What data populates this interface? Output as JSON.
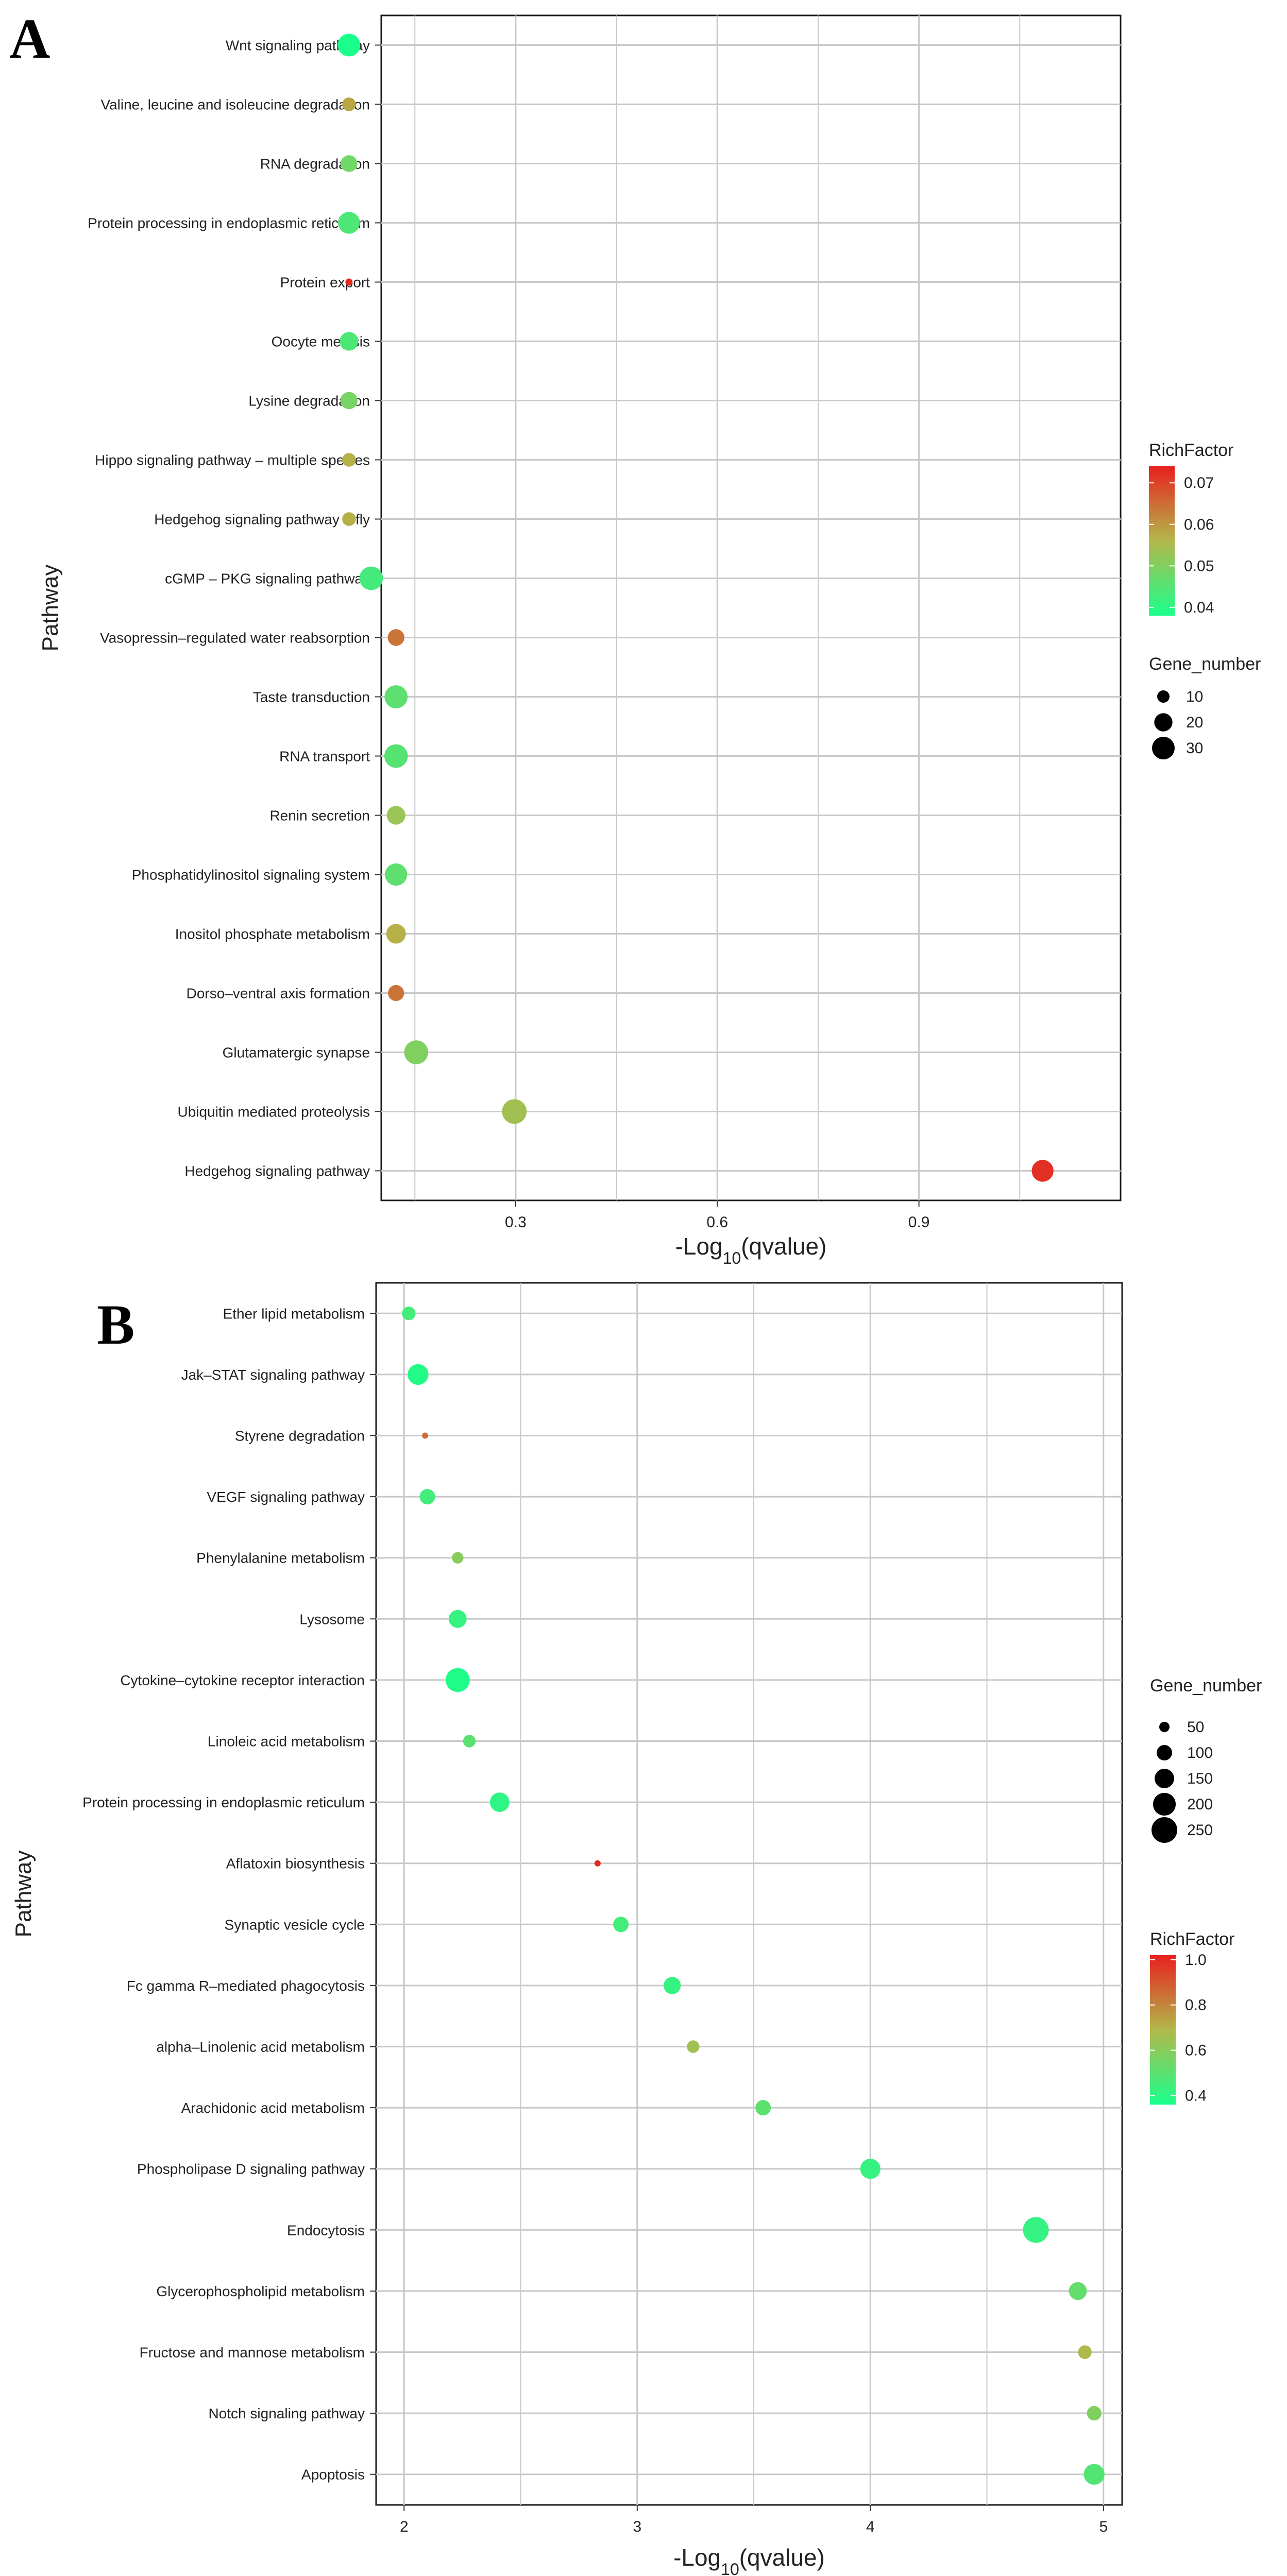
{
  "chart_data": [
    {
      "panel_label": "A",
      "type": "scatter",
      "title": "",
      "xlabel": "-Log10(qvalue)",
      "xlabel_main": "-Log",
      "xlabel_sub": "10",
      "xlabel_tail": "(qvalue)",
      "ylabel": "Pathway",
      "xlim": [
        0.1,
        1.2
      ],
      "xticks": [
        0.3,
        0.6,
        0.9
      ],
      "xtick_labels": [
        "0.3",
        "0.6",
        "0.9"
      ],
      "categories": [
        "Wnt signaling pathway",
        "Valine, leucine and isoleucine degradation",
        "RNA degradation",
        "Protein processing in endoplasmic reticulum",
        "Protein export",
        "Oocyte meiosis",
        "Lysine degradation",
        "Hippo signaling pathway – multiple species",
        "Hedgehog signaling pathway – fly",
        "cGMP – PKG signaling pathway",
        "Vasopressin–regulated water reabsorption",
        "Taste transduction",
        "RNA transport",
        "Renin secretion",
        "Phosphatidylinositol signaling system",
        "Inositol phosphate metabolism",
        "Dorso–ventral axis formation",
        "Glutamatergic synapse",
        "Ubiquitin mediated proteolysis",
        "Hedgehog signaling pathway"
      ],
      "x": [
        0.052,
        0.052,
        0.052,
        0.052,
        0.052,
        0.052,
        0.052,
        0.052,
        0.052,
        0.085,
        0.122,
        0.122,
        0.122,
        0.122,
        0.122,
        0.122,
        0.122,
        0.152,
        0.298,
        1.084
      ],
      "gene_number": [
        30,
        12,
        17,
        28,
        4,
        21,
        18,
        12,
        12,
        32,
        17,
        31,
        32,
        21,
        29,
        23,
        16,
        33,
        35,
        28
      ],
      "rich_factor": [
        0.038,
        0.058,
        0.048,
        0.044,
        0.073,
        0.044,
        0.049,
        0.057,
        0.057,
        0.043,
        0.064,
        0.046,
        0.045,
        0.053,
        0.046,
        0.057,
        0.064,
        0.05,
        0.054,
        0.072
      ],
      "legends": [
        {
          "title": "RichFactor",
          "kind": "colorbar",
          "range": [
            0.038,
            0.074
          ],
          "ticks": [
            0.04,
            0.05,
            0.06,
            0.07
          ],
          "tick_labels": [
            "0.04",
            "0.05",
            "0.06",
            "0.07"
          ]
        },
        {
          "title": "Gene_number",
          "kind": "size",
          "values": [
            10,
            20,
            30
          ],
          "labels": [
            "10",
            "20",
            "30"
          ]
        }
      ],
      "colors": {
        "low": "#1aff8c",
        "mid": "#b3b84a",
        "high": "#e8201f"
      }
    },
    {
      "panel_label": "B",
      "type": "scatter",
      "title": "",
      "xlabel": "-Log10(qvalue)",
      "xlabel_main": "-Log",
      "xlabel_sub": "10",
      "xlabel_tail": "(qvalue)",
      "ylabel": "Pathway",
      "xlim": [
        1.88,
        5.08
      ],
      "xticks": [
        2,
        3,
        4,
        5
      ],
      "xtick_labels": [
        "2",
        "3",
        "4",
        "5"
      ],
      "categories": [
        "Ether lipid metabolism",
        "Jak–STAT signaling pathway",
        "Styrene degradation",
        "VEGF signaling pathway",
        "Phenylalanine metabolism",
        "Lysosome",
        "Cytokine–cytokine receptor interaction",
        "Linoleic acid metabolism",
        "Protein processing in endoplasmic reticulum",
        "Aflatoxin biosynthesis",
        "Synaptic vesicle cycle",
        "Fc gamma R–mediated phagocytosis",
        "alpha–Linolenic acid metabolism",
        "Arachidonic acid metabolism",
        "Phospholipase D signaling pathway",
        "Endocytosis",
        "Glycerophospholipid metabolism",
        "Fructose and mannose metabolism",
        "Notch signaling pathway",
        "Apoptosis"
      ],
      "x": [
        2.02,
        2.06,
        2.09,
        2.1,
        2.23,
        2.23,
        2.23,
        2.28,
        2.41,
        2.83,
        2.93,
        3.15,
        3.24,
        3.54,
        4.0,
        4.71,
        4.89,
        4.92,
        4.96,
        4.96
      ],
      "gene_number": [
        80,
        170,
        20,
        100,
        60,
        130,
        220,
        70,
        150,
        15,
        100,
        120,
        70,
        100,
        160,
        250,
        130,
        80,
        90,
        170
      ],
      "rich_factor": [
        0.45,
        0.38,
        0.85,
        0.45,
        0.6,
        0.42,
        0.37,
        0.5,
        0.4,
        1.0,
        0.45,
        0.42,
        0.65,
        0.5,
        0.42,
        0.42,
        0.52,
        0.68,
        0.58,
        0.48
      ],
      "legends": [
        {
          "title": "Gene_number",
          "kind": "size",
          "values": [
            50,
            100,
            150,
            200,
            250
          ],
          "labels": [
            "50",
            "100",
            "150",
            "200",
            "250"
          ]
        },
        {
          "title": "RichFactor",
          "kind": "colorbar",
          "range": [
            0.36,
            1.02
          ],
          "ticks": [
            0.4,
            0.6,
            0.8,
            1.0
          ],
          "tick_labels": [
            "0.4",
            "0.6",
            "0.8",
            "1.0"
          ]
        }
      ],
      "colors": {
        "low": "#1aff8c",
        "mid": "#b3b84a",
        "high": "#e8201f"
      }
    }
  ]
}
